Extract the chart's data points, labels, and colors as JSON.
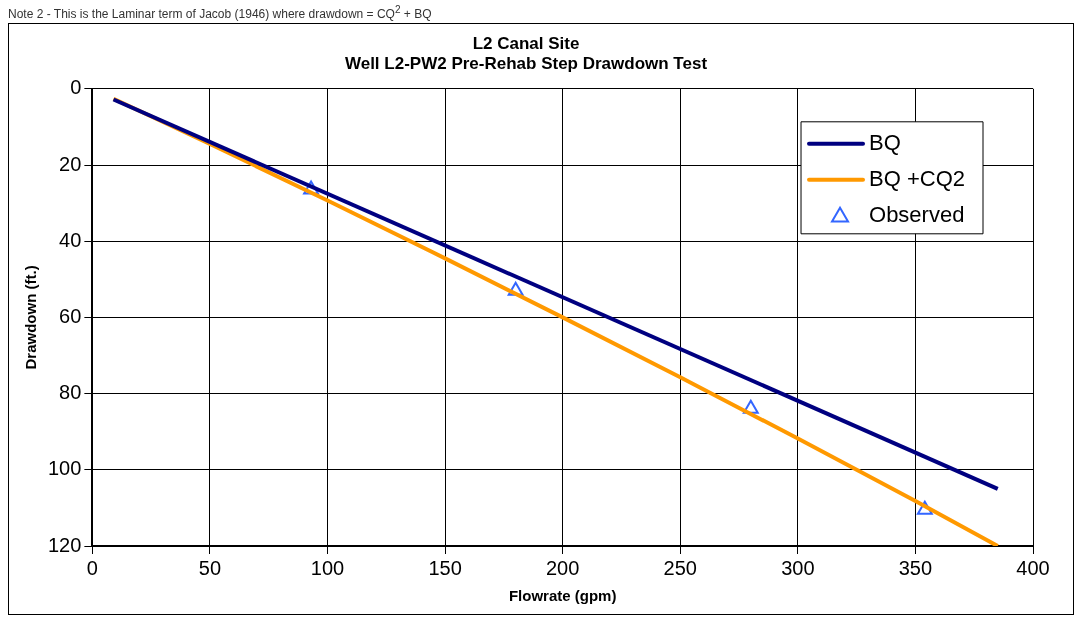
{
  "chart_data": {
    "type": "line",
    "title": "L2 Canal Site\nWell L2-PW2 Pre-Rehab Step Drawdown Test",
    "xlabel": "Flowrate (gpm)",
    "ylabel": "Drawdown (ft.)",
    "annotations": [
      "Note 2 - This is the Laminar term of Jacob (1946) where drawdown = CQ$^{2}$ + BQ"
    ],
    "xlim": [
      0,
      400
    ],
    "xticks": [
      0,
      50,
      100,
      150,
      200,
      250,
      300,
      350,
      400
    ],
    "ylim": [
      120,
      0
    ],
    "yticks": [
      0,
      20,
      40,
      60,
      80,
      100,
      120
    ],
    "grid": true,
    "legend": "top right",
    "series": [
      {
        "name": "BQ",
        "color": "#000080",
        "marker": "none",
        "x": [
          9,
          385
        ],
        "values": [
          2.8,
          105
        ]
      },
      {
        "name": "BQ +CQ2",
        "color": "#ff9900",
        "marker": "none",
        "x": [
          9,
          50,
          100,
          150,
          200,
          250,
          300,
          350,
          385
        ],
        "values": [
          2.6,
          14.5,
          29.3,
          44.5,
          60,
          75.7,
          91.8,
          108.2,
          120
        ]
      },
      {
        "name": "Observed",
        "color": "#3366ff",
        "type": "scatter",
        "marker": "triangle",
        "x": [
          93,
          180,
          280,
          354
        ],
        "values": [
          26.4,
          53,
          84,
          110.5
        ]
      }
    ]
  }
}
